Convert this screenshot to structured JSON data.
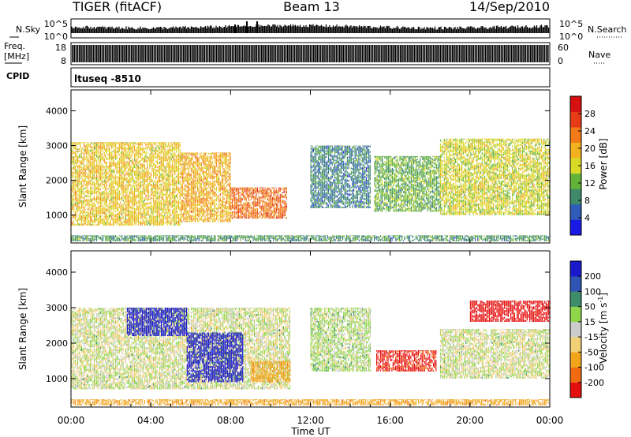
{
  "header": {
    "radar": "TIGER (fitACF)",
    "beam": "Beam 13",
    "date": "14/Sep/2010"
  },
  "strips": {
    "nsky_label": "N.Sky",
    "nsky_ticks": [
      "10^5",
      "10^0"
    ],
    "nsearch_label": "N.Search",
    "nsearch_ticks": [
      "10^5",
      "10^0"
    ],
    "freq_label": "Freq.",
    "freq_unit": "[MHz]",
    "freq_ticks": [
      "18",
      "8"
    ],
    "nave_label": "Nave",
    "nave_ticks": [
      "60",
      "0"
    ],
    "cpid_label": "CPID",
    "cpid_value": "ltuseq -8510"
  },
  "colors": {
    "power": [
      "#1a1ae6",
      "#2e5cb8",
      "#3f8a6a",
      "#63b33a",
      "#d9d926",
      "#f2b21f",
      "#f27a18",
      "#e63b16",
      "#d61010"
    ],
    "velocity": [
      "#e60f0f",
      "#f06a12",
      "#f2a51b",
      "#f2d077",
      "#cccccc",
      "#8fd64a",
      "#3f8c6a",
      "#2e55b3",
      "#1a1acc"
    ]
  },
  "chart_data": [
    {
      "type": "heatmap",
      "title": "Power",
      "xlabel": "Time UT",
      "ylabel": "Slant Range [km]",
      "x_ticks": [
        "00:00",
        "04:00",
        "08:00",
        "12:00",
        "16:00",
        "20:00",
        "00:00"
      ],
      "xlim_hours": [
        0,
        24
      ],
      "ylim": [
        200,
        4600
      ],
      "y_ticks": [
        1000,
        2000,
        3000,
        4000
      ],
      "colorbar": {
        "label": "Power [dB]",
        "ticks": [
          4,
          8,
          12,
          16,
          20,
          24,
          28
        ],
        "range": [
          0,
          32
        ]
      },
      "echo_regions": [
        {
          "t_start": 0.0,
          "t_end": 5.5,
          "range_min": 700,
          "range_max": 3100,
          "value_mean": 18
        },
        {
          "t_start": 5.5,
          "t_end": 8.0,
          "range_min": 800,
          "range_max": 2800,
          "value_mean": 20
        },
        {
          "t_start": 8.0,
          "t_end": 10.8,
          "range_min": 900,
          "range_max": 1800,
          "value_mean": 24
        },
        {
          "t_start": 12.0,
          "t_end": 15.0,
          "range_min": 1200,
          "range_max": 3000,
          "value_mean": 8
        },
        {
          "t_start": 15.2,
          "t_end": 18.5,
          "range_min": 1100,
          "range_max": 2700,
          "value_mean": 12
        },
        {
          "t_start": 18.5,
          "t_end": 24.0,
          "range_min": 1000,
          "range_max": 3200,
          "value_mean": 16
        },
        {
          "t_start": 0.0,
          "t_end": 24.0,
          "range_min": 250,
          "range_max": 420,
          "value_mean": 10
        }
      ]
    },
    {
      "type": "heatmap",
      "title": "Velocity",
      "xlabel": "Time UT",
      "ylabel": "Slant Range [km]",
      "x_ticks": [
        "00:00",
        "04:00",
        "08:00",
        "12:00",
        "16:00",
        "20:00",
        "00:00"
      ],
      "xlim_hours": [
        0,
        24
      ],
      "ylim": [
        200,
        4600
      ],
      "y_ticks": [
        1000,
        2000,
        3000,
        4000
      ],
      "colorbar": {
        "label": "Velocity [m s^-1]",
        "ticks": [
          200,
          100,
          50,
          15,
          -15,
          -50,
          -100,
          -200
        ]
      },
      "echo_regions": [
        {
          "t_start": 0.0,
          "t_end": 11.0,
          "range_min": 700,
          "range_max": 3000,
          "value_mean": 0
        },
        {
          "t_start": 2.8,
          "t_end": 5.8,
          "range_min": 2200,
          "range_max": 3000,
          "value_mean": 180
        },
        {
          "t_start": 5.8,
          "t_end": 8.6,
          "range_min": 900,
          "range_max": 2300,
          "value_mean": 190
        },
        {
          "t_start": 9.0,
          "t_end": 11.0,
          "range_min": 900,
          "range_max": 1500,
          "value_mean": -50
        },
        {
          "t_start": 12.0,
          "t_end": 15.0,
          "range_min": 1200,
          "range_max": 3000,
          "value_mean": 10
        },
        {
          "t_start": 15.3,
          "t_end": 18.3,
          "range_min": 1200,
          "range_max": 1800,
          "value_mean": -160
        },
        {
          "t_start": 18.5,
          "t_end": 24.0,
          "range_min": 1000,
          "range_max": 2400,
          "value_mean": 0
        },
        {
          "t_start": 20.0,
          "t_end": 24.0,
          "range_min": 2600,
          "range_max": 3200,
          "value_mean": -180
        },
        {
          "t_start": 0.0,
          "t_end": 24.0,
          "range_min": 250,
          "range_max": 420,
          "value_mean": -50
        }
      ]
    }
  ]
}
